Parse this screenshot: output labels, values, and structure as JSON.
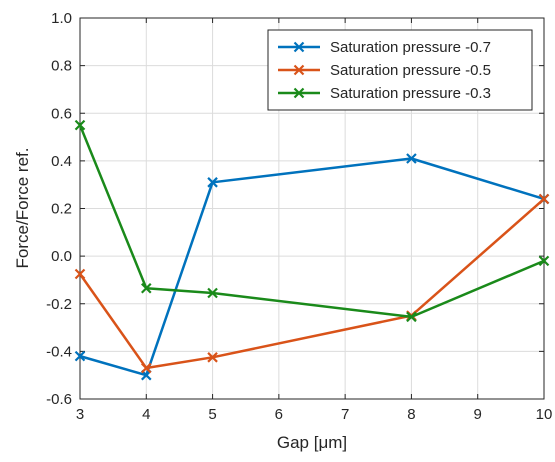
{
  "chart_data": {
    "type": "line",
    "xlabel": "Gap [μm]",
    "ylabel": "Force/Force ref.",
    "xlim": [
      3,
      10
    ],
    "ylim": [
      -0.6,
      1.0
    ],
    "xticks": [
      3,
      4,
      5,
      6,
      7,
      8,
      9,
      10
    ],
    "xtick_labels": [
      "3",
      "4",
      "5",
      "6",
      "7",
      "8",
      "9",
      "10"
    ],
    "yticks": [
      -0.6,
      -0.4,
      -0.2,
      0.0,
      0.2,
      0.4,
      0.6,
      0.8,
      1.0
    ],
    "ytick_labels": [
      "-0.6",
      "-0.4",
      "-0.2",
      "0.0",
      "0.2",
      "0.4",
      "0.6",
      "0.8",
      "1.0"
    ],
    "grid": true,
    "legend_position": "top-right",
    "marker": "x",
    "series": [
      {
        "name": "Saturation pressure -0.7",
        "color": "#0072BD",
        "x": [
          3,
          4,
          5,
          8,
          10
        ],
        "y": [
          -0.42,
          -0.5,
          0.31,
          0.41,
          0.24
        ]
      },
      {
        "name": "Saturation pressure -0.5",
        "color": "#D95319",
        "x": [
          3,
          4,
          5,
          8,
          10
        ],
        "y": [
          -0.075,
          -0.47,
          -0.425,
          -0.25,
          0.24
        ]
      },
      {
        "name": "Saturation pressure -0.3",
        "color": "#1A8A1A",
        "x": [
          3,
          4,
          5,
          8,
          10
        ],
        "y": [
          0.55,
          -0.135,
          -0.155,
          -0.255,
          -0.02
        ]
      }
    ]
  }
}
